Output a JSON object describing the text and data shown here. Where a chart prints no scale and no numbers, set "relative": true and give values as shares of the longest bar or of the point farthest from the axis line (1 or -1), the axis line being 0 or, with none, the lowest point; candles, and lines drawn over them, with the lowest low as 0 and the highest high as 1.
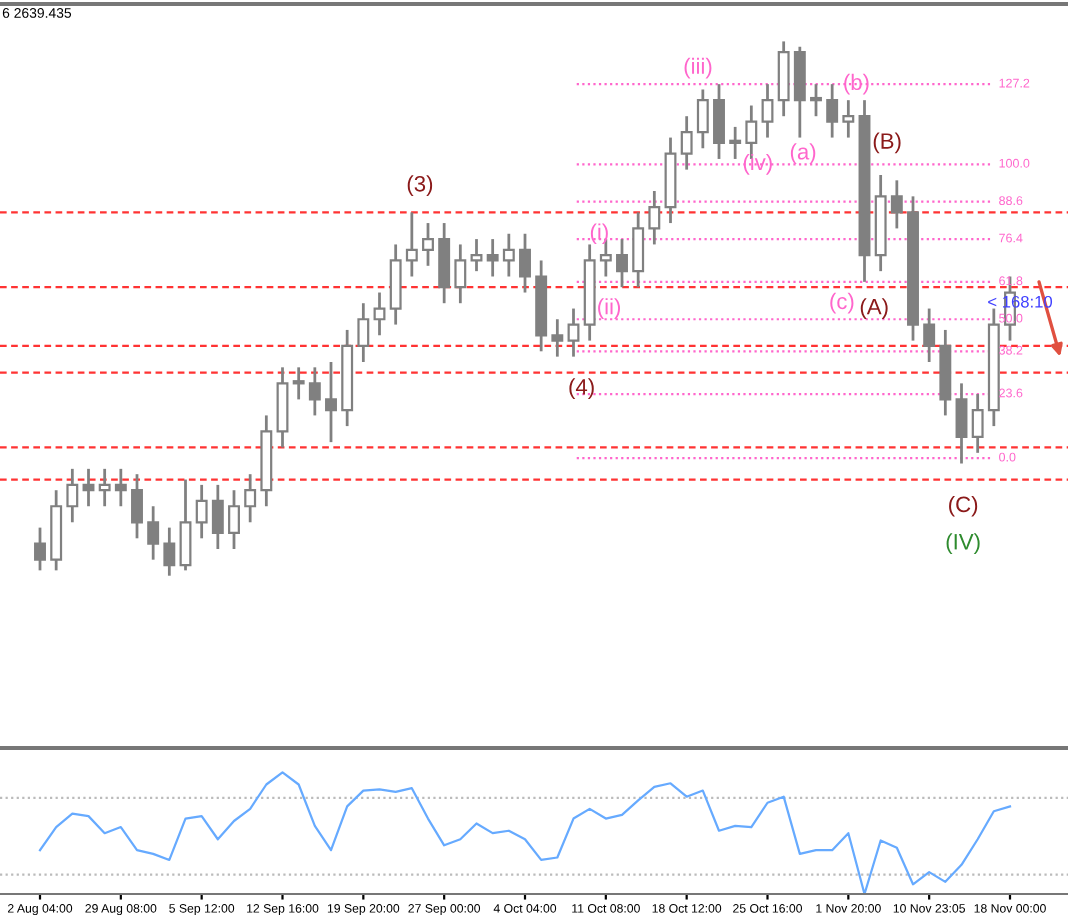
{
  "chart_data": [
    {
      "type": "candlestick",
      "relative": true,
      "tick_labels": false,
      "color": "#808080",
      "categories": [
        null,
        null,
        null,
        null,
        null,
        null,
        null,
        null,
        null,
        null,
        null,
        null,
        null,
        null,
        null,
        null,
        null,
        null,
        null,
        null,
        null,
        null,
        null,
        null,
        null,
        null,
        null,
        null,
        null,
        null,
        null,
        null,
        null,
        null,
        null,
        null,
        null,
        null,
        null,
        null,
        null,
        null,
        null,
        null,
        null,
        null,
        null,
        null,
        null,
        null,
        null,
        null,
        null,
        null,
        null,
        null,
        null,
        null,
        null,
        null,
        null
      ],
      "ohlc": [
        [
          0.06,
          0.09,
          0.01,
          0.03
        ],
        [
          0.03,
          0.16,
          0.01,
          0.13
        ],
        [
          0.13,
          0.2,
          0.1,
          0.17
        ],
        [
          0.17,
          0.2,
          0.13,
          0.16
        ],
        [
          0.16,
          0.2,
          0.13,
          0.17
        ],
        [
          0.17,
          0.2,
          0.13,
          0.16
        ],
        [
          0.16,
          0.19,
          0.07,
          0.1
        ],
        [
          0.1,
          0.13,
          0.03,
          0.06
        ],
        [
          0.06,
          0.09,
          0.0,
          0.02
        ],
        [
          0.02,
          0.18,
          0.01,
          0.1
        ],
        [
          0.1,
          0.17,
          0.07,
          0.14
        ],
        [
          0.14,
          0.17,
          0.05,
          0.08
        ],
        [
          0.08,
          0.16,
          0.05,
          0.13
        ],
        [
          0.13,
          0.19,
          0.1,
          0.16
        ],
        [
          0.16,
          0.3,
          0.13,
          0.27
        ],
        [
          0.27,
          0.39,
          0.24,
          0.36
        ],
        [
          0.36,
          0.39,
          0.33,
          0.36
        ],
        [
          0.36,
          0.39,
          0.3,
          0.33
        ],
        [
          0.33,
          0.4,
          0.25,
          0.31
        ],
        [
          0.31,
          0.46,
          0.28,
          0.43
        ],
        [
          0.43,
          0.51,
          0.4,
          0.48
        ],
        [
          0.48,
          0.53,
          0.45,
          0.5
        ],
        [
          0.5,
          0.62,
          0.47,
          0.59
        ],
        [
          0.59,
          0.68,
          0.56,
          0.61
        ],
        [
          0.61,
          0.66,
          0.58,
          0.63
        ],
        [
          0.63,
          0.66,
          0.51,
          0.54
        ],
        [
          0.54,
          0.62,
          0.51,
          0.59
        ],
        [
          0.59,
          0.63,
          0.57,
          0.6
        ],
        [
          0.6,
          0.63,
          0.56,
          0.59
        ],
        [
          0.59,
          0.64,
          0.56,
          0.61
        ],
        [
          0.61,
          0.64,
          0.53,
          0.56
        ],
        [
          0.56,
          0.59,
          0.42,
          0.45
        ],
        [
          0.45,
          0.48,
          0.41,
          0.44
        ],
        [
          0.44,
          0.5,
          0.41,
          0.47
        ],
        [
          0.47,
          0.62,
          0.44,
          0.59
        ],
        [
          0.59,
          0.63,
          0.56,
          0.6
        ],
        [
          0.6,
          0.63,
          0.54,
          0.57
        ],
        [
          0.57,
          0.68,
          0.54,
          0.65
        ],
        [
          0.65,
          0.72,
          0.62,
          0.69
        ],
        [
          0.69,
          0.82,
          0.66,
          0.79
        ],
        [
          0.79,
          0.86,
          0.76,
          0.83
        ],
        [
          0.83,
          0.91,
          0.8,
          0.89
        ],
        [
          0.89,
          0.92,
          0.78,
          0.81
        ],
        [
          0.81,
          0.84,
          0.78,
          0.81
        ],
        [
          0.81,
          0.88,
          0.78,
          0.85
        ],
        [
          0.85,
          0.92,
          0.82,
          0.89
        ],
        [
          0.89,
          1.0,
          0.86,
          0.98
        ],
        [
          0.98,
          0.99,
          0.82,
          0.89
        ],
        [
          0.89,
          0.92,
          0.86,
          0.89
        ],
        [
          0.89,
          0.92,
          0.82,
          0.85
        ],
        [
          0.85,
          0.89,
          0.82,
          0.86
        ],
        [
          0.86,
          0.89,
          0.55,
          0.6
        ],
        [
          0.6,
          0.75,
          0.57,
          0.71
        ],
        [
          0.71,
          0.74,
          0.65,
          0.68
        ],
        [
          0.68,
          0.71,
          0.44,
          0.47
        ],
        [
          0.47,
          0.5,
          0.4,
          0.43
        ],
        [
          0.43,
          0.46,
          0.3,
          0.33
        ],
        [
          0.33,
          0.36,
          0.21,
          0.26
        ],
        [
          0.26,
          0.34,
          0.23,
          0.31
        ],
        [
          0.31,
          0.5,
          0.28,
          0.47
        ],
        [
          0.47,
          0.56,
          0.44,
          0.53
        ]
      ],
      "ref_lines": [
        {
          "axis": "y",
          "value": 0.68,
          "color": "#ff3333",
          "line_style": "dashed"
        },
        {
          "axis": "y",
          "value": 0.54,
          "color": "#ff3333",
          "line_style": "dashed"
        },
        {
          "axis": "y",
          "value": 0.43,
          "color": "#ff3333",
          "line_style": "dashed"
        },
        {
          "axis": "y",
          "value": 0.38,
          "color": "#ff3333",
          "line_style": "dashed"
        },
        {
          "axis": "y",
          "value": 0.24,
          "color": "#ff3333",
          "line_style": "dashed"
        },
        {
          "axis": "y",
          "value": 0.18,
          "color": "#ff3333",
          "line_style": "dashed"
        },
        {
          "axis": "y",
          "value": 0.92,
          "color": "#ff66cc",
          "line_style": "dotted"
        },
        {
          "axis": "y",
          "value": 0.77,
          "color": "#ff66cc",
          "line_style": "dotted"
        },
        {
          "axis": "y",
          "value": 0.7,
          "color": "#ff66cc",
          "line_style": "dotted"
        },
        {
          "axis": "y",
          "value": 0.63,
          "color": "#ff66cc",
          "line_style": "dotted"
        },
        {
          "axis": "y",
          "value": 0.55,
          "color": "#ff66cc",
          "line_style": "dotted"
        },
        {
          "axis": "y",
          "value": 0.48,
          "color": "#ff66cc",
          "line_style": "dotted"
        },
        {
          "axis": "y",
          "value": 0.42,
          "color": "#ff66cc",
          "line_style": "dotted"
        },
        {
          "axis": "y",
          "value": 0.34,
          "color": "#ff66cc",
          "line_style": "dotted"
        },
        {
          "axis": "y",
          "value": 0.22,
          "color": "#ff66cc",
          "line_style": "dotted"
        }
      ],
      "annotations": [
        "6 2639.435",
        "(3)",
        "(4)",
        "(i)",
        "(ii)",
        "(iii)",
        "(iv)",
        "(a)",
        "(b)",
        "(c)",
        "(B)",
        "(A)",
        "(C)",
        "(IV)",
        "< 168:10",
        "127.2",
        "100.0",
        "88.6",
        "76.4",
        "61.8",
        "50.0",
        "38.2",
        "23.6",
        "0.0"
      ]
    },
    {
      "type": "line",
      "relative": true,
      "color": "#66aaff",
      "categories": [
        "2 Aug 04:00",
        null,
        null,
        null,
        null,
        "29 Aug 08:00",
        null,
        null,
        null,
        null,
        "5 Sep 12:00",
        null,
        null,
        null,
        null,
        "12 Sep 16:00",
        null,
        null,
        null,
        null,
        "19 Sep 20:00",
        null,
        null,
        null,
        null,
        "27 Sep 00:00",
        null,
        null,
        null,
        null,
        "4 Oct 04:00",
        null,
        null,
        null,
        null,
        "11 Oct 08:00",
        null,
        null,
        null,
        null,
        "18 Oct 12:00",
        null,
        null,
        null,
        null,
        "25 Oct 16:00",
        null,
        null,
        null,
        null,
        "1 Nov 20:00",
        null,
        null,
        null,
        null,
        "10 Nov 23:05",
        null,
        null,
        null,
        null,
        "18 Nov 00:00"
      ],
      "values": [
        0.36,
        0.55,
        0.66,
        0.64,
        0.5,
        0.55,
        0.36,
        0.33,
        0.28,
        0.62,
        0.64,
        0.45,
        0.6,
        0.7,
        0.9,
        1.0,
        0.9,
        0.56,
        0.36,
        0.72,
        0.85,
        0.86,
        0.84,
        0.87,
        0.62,
        0.4,
        0.45,
        0.58,
        0.5,
        0.52,
        0.45,
        0.28,
        0.3,
        0.62,
        0.7,
        0.62,
        0.65,
        0.77,
        0.88,
        0.91,
        0.8,
        0.85,
        0.52,
        0.56,
        0.55,
        0.75,
        0.8,
        0.33,
        0.36,
        0.36,
        0.5,
        0.0,
        0.44,
        0.38,
        0.08,
        0.18,
        0.1,
        0.24,
        0.45,
        0.68,
        0.72
      ],
      "ref_lines": [
        {
          "axis": "y",
          "value": 0.79,
          "color": "#bbbbbb",
          "line_style": "dotted"
        },
        {
          "axis": "y",
          "value": 0.16,
          "color": "#bbbbbb",
          "line_style": "dotted"
        }
      ]
    }
  ]
}
